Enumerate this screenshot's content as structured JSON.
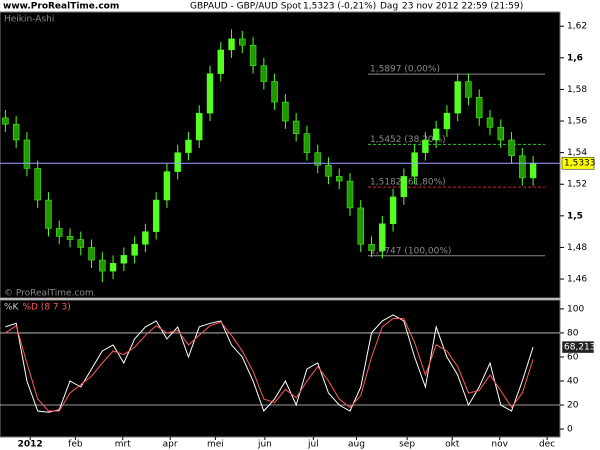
{
  "header": {
    "site": "www.ProRealTime.com",
    "title": "GBPAUD - GBP/AUD Spot",
    "quote": "1,5323 (-0,21%)",
    "period": "Dag",
    "timestamp": "23 nov 2012 22:59 (21:59)"
  },
  "chart_data": [
    {
      "type": "candlestick",
      "label": "Heikin-Ashi",
      "watermark": "© ProRealTime.com",
      "up_color": "#55ff22",
      "down_color": "#1f9a00",
      "open": [
        1.562,
        1.558,
        1.548,
        1.53,
        1.51,
        1.492,
        1.487,
        1.485,
        1.48,
        1.472,
        1.465,
        1.47,
        1.475,
        1.482,
        1.49,
        1.51,
        1.528,
        1.54,
        1.548,
        1.565,
        1.59,
        1.605,
        1.612,
        1.608,
        1.595,
        1.585,
        1.572,
        1.56,
        1.552,
        1.54,
        1.532,
        1.525,
        1.522,
        1.505,
        1.482,
        1.478,
        1.495,
        1.512,
        1.525,
        1.54,
        1.548,
        1.555,
        1.565,
        1.585,
        1.575,
        1.562,
        1.556,
        1.548,
        1.538,
        1.524
      ],
      "high": [
        1.567,
        1.563,
        1.553,
        1.535,
        1.515,
        1.497,
        1.492,
        1.49,
        1.485,
        1.477,
        1.475,
        1.48,
        1.487,
        1.495,
        1.515,
        1.533,
        1.545,
        1.553,
        1.57,
        1.595,
        1.61,
        1.618,
        1.617,
        1.613,
        1.6,
        1.59,
        1.577,
        1.565,
        1.557,
        1.545,
        1.537,
        1.53,
        1.527,
        1.51,
        1.487,
        1.5,
        1.517,
        1.53,
        1.545,
        1.553,
        1.56,
        1.57,
        1.59,
        1.59,
        1.58,
        1.567,
        1.561,
        1.553,
        1.543,
        1.538
      ],
      "low": [
        1.553,
        1.543,
        1.525,
        1.505,
        1.487,
        1.482,
        1.48,
        1.475,
        1.467,
        1.458,
        1.46,
        1.465,
        1.47,
        1.477,
        1.485,
        1.505,
        1.523,
        1.535,
        1.543,
        1.56,
        1.585,
        1.6,
        1.603,
        1.59,
        1.58,
        1.567,
        1.555,
        1.547,
        1.535,
        1.527,
        1.52,
        1.517,
        1.5,
        1.477,
        1.474,
        1.473,
        1.49,
        1.507,
        1.52,
        1.535,
        1.543,
        1.55,
        1.56,
        1.57,
        1.557,
        1.551,
        1.543,
        1.533,
        1.519,
        1.519
      ],
      "close": [
        1.558,
        1.548,
        1.53,
        1.51,
        1.492,
        1.487,
        1.485,
        1.48,
        1.472,
        1.465,
        1.47,
        1.475,
        1.482,
        1.49,
        1.51,
        1.528,
        1.54,
        1.548,
        1.565,
        1.59,
        1.605,
        1.612,
        1.608,
        1.595,
        1.585,
        1.572,
        1.56,
        1.552,
        1.54,
        1.532,
        1.525,
        1.522,
        1.505,
        1.482,
        1.478,
        1.495,
        1.512,
        1.525,
        1.54,
        1.548,
        1.555,
        1.565,
        1.585,
        1.575,
        1.562,
        1.556,
        1.548,
        1.538,
        1.524,
        1.5333
      ],
      "xlim": [
        -0.5,
        51.5
      ],
      "xticks": [
        {
          "value": 2.3,
          "label": "2012"
        },
        {
          "value": 6.5,
          "label": "feb"
        },
        {
          "value": 10.9,
          "label": "mrt"
        },
        {
          "value": 15.3,
          "label": "apr"
        },
        {
          "value": 19.5,
          "label": "mei"
        },
        {
          "value": 24.1,
          "label": "jun"
        },
        {
          "value": 28.6,
          "label": "jul"
        },
        {
          "value": 32.6,
          "label": "aug"
        },
        {
          "value": 37.3,
          "label": "sep"
        },
        {
          "value": 41.5,
          "label": "okt"
        },
        {
          "value": 45.9,
          "label": "nov"
        },
        {
          "value": 50.3,
          "label": "dec"
        }
      ],
      "ylim": [
        1.448,
        1.629
      ],
      "yticks": [
        {
          "value": 1.46,
          "label": "1,46"
        },
        {
          "value": 1.48,
          "label": "1,48"
        },
        {
          "value": 1.5,
          "label": "1,5"
        },
        {
          "value": 1.52,
          "label": "1,52"
        },
        {
          "value": 1.54,
          "label": "1,54"
        },
        {
          "value": 1.56,
          "label": "1,56"
        },
        {
          "value": 1.58,
          "label": "1,58"
        },
        {
          "value": 1.6,
          "label": "1,6"
        },
        {
          "value": 1.62,
          "label": "1,62"
        }
      ],
      "last_price": {
        "value": 1.5333,
        "label": "1,5333"
      },
      "price_line_color": "#9f9fff",
      "fib_levels": [
        {
          "value": 1.5897,
          "label": "1,5897 (0,00%)",
          "color": "#8a8a8a",
          "dashed": false
        },
        {
          "value": 1.5452,
          "label": "1,5452 (38,20%)",
          "color": "#22cc22",
          "dashed": true
        },
        {
          "value": 1.5182,
          "label": "1,5182 (61,80%)",
          "color": "#dd2222",
          "dashed": true
        },
        {
          "value": 1.4747,
          "label": "1,4747 (100,00%)",
          "color": "#8a8a8a",
          "dashed": false
        }
      ]
    },
    {
      "type": "line",
      "series": [
        {
          "name": "%K",
          "color": "#ffffff",
          "values": [
            85,
            88,
            40,
            15,
            14,
            16,
            40,
            35,
            50,
            65,
            70,
            55,
            75,
            85,
            90,
            75,
            85,
            60,
            85,
            88,
            90,
            70,
            60,
            40,
            15,
            25,
            40,
            20,
            50,
            55,
            30,
            20,
            15,
            35,
            80,
            90,
            95,
            90,
            60,
            35,
            85,
            60,
            45,
            20,
            35,
            55,
            20,
            15,
            40,
            68.213
          ]
        },
        {
          "name": "%D (8 7 3)",
          "color": "#ff5a5a",
          "values": [
            80,
            86,
            55,
            25,
            15,
            15,
            30,
            37,
            44,
            55,
            65,
            62,
            68,
            78,
            86,
            80,
            82,
            70,
            78,
            86,
            89,
            78,
            65,
            48,
            25,
            22,
            33,
            26,
            40,
            52,
            40,
            25,
            18,
            28,
            60,
            85,
            92,
            92,
            72,
            45,
            70,
            65,
            52,
            30,
            32,
            45,
            32,
            18,
            30,
            58
          ]
        }
      ],
      "ylim": [
        -6.6,
        107.4
      ],
      "yticks": [
        0,
        20,
        40,
        60,
        80,
        100
      ],
      "levels": [
        20,
        80
      ],
      "last_value": {
        "value": 68.213,
        "label": "68,213"
      }
    }
  ]
}
